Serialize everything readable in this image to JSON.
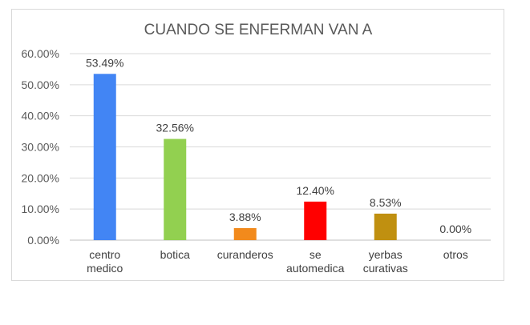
{
  "chart_data": {
    "type": "bar",
    "title": "CUANDO SE ENFERMAN VAN A",
    "xlabel": "",
    "ylabel": "",
    "ylim": [
      0,
      0.6
    ],
    "y_ticks": [
      0,
      0.1,
      0.2,
      0.3,
      0.4,
      0.5,
      0.6
    ],
    "y_tick_labels": [
      "0.00%",
      "10.00%",
      "20.00%",
      "30.00%",
      "40.00%",
      "50.00%",
      "60.00%"
    ],
    "grid": true,
    "legend": "none",
    "categories": [
      [
        "centro",
        "medico"
      ],
      [
        "botica"
      ],
      [
        "curanderos"
      ],
      [
        "se",
        "automedica"
      ],
      [
        "yerbas",
        "curativas"
      ],
      [
        "otros"
      ]
    ],
    "values": [
      0.5349,
      0.3256,
      0.0388,
      0.124,
      0.0853,
      0.0
    ],
    "data_labels": [
      "53.49%",
      "32.56%",
      "3.88%",
      "12.40%",
      "8.53%",
      "0.00%"
    ],
    "colors": [
      "#4285F4",
      "#92D050",
      "#F28A1C",
      "#FF0000",
      "#C09010",
      "#7F7F7F"
    ]
  }
}
